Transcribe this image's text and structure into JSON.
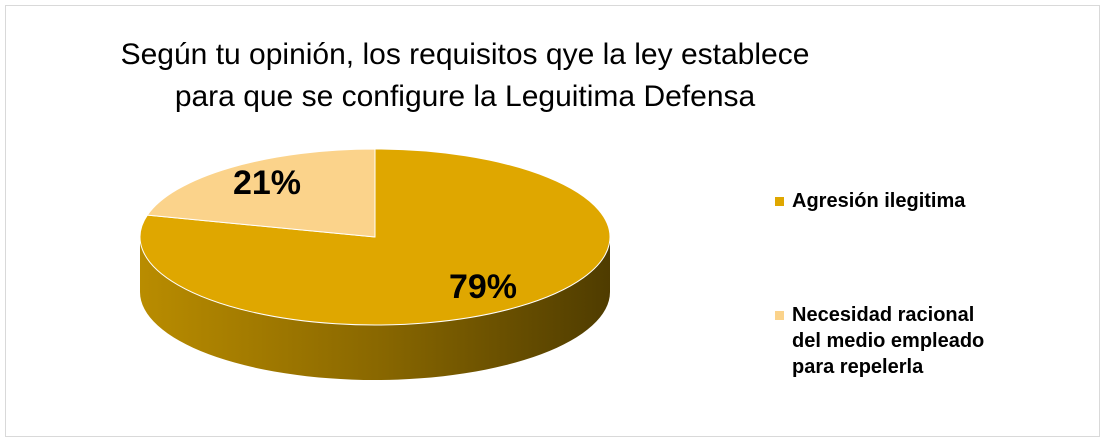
{
  "chart_data": {
    "type": "pie",
    "title": "Según tu opinión, los requisitos qye la ley establece para que se configure la Leguitima Defensa",
    "categories": [
      "Agresión ilegitima",
      "Necesidad racional del medio empleado para repelerla"
    ],
    "values": [
      79,
      21
    ],
    "value_labels": [
      "79%",
      "21%"
    ],
    "colors": [
      "#dfa700",
      "#fbd38b"
    ],
    "legend": "right"
  }
}
